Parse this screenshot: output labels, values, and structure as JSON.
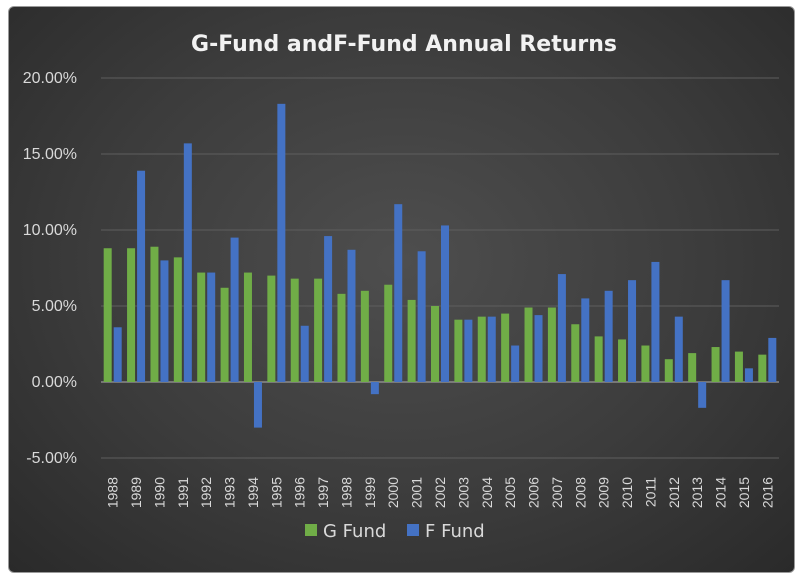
{
  "chart_data": {
    "type": "bar",
    "title": "G-Fund andF-Fund Annual Returns",
    "xlabel": "",
    "ylabel": "",
    "ylim": [
      -5,
      20
    ],
    "yticks": [
      "-5.00%",
      "0.00%",
      "5.00%",
      "10.00%",
      "15.00%",
      "20.00%"
    ],
    "ytick_values": [
      -5,
      0,
      5,
      10,
      15,
      20
    ],
    "grid": true,
    "legend": "bottom",
    "categories": [
      "1988",
      "1989",
      "1990",
      "1991",
      "1992",
      "1993",
      "1994",
      "1995",
      "1996",
      "1997",
      "1998",
      "1999",
      "2000",
      "2001",
      "2002",
      "2003",
      "2004",
      "2005",
      "2006",
      "2007",
      "2008",
      "2009",
      "2010",
      "2011",
      "2012",
      "2013",
      "2014",
      "2015",
      "2016"
    ],
    "series": [
      {
        "name": "G Fund",
        "color": "#70ad47",
        "values": [
          8.8,
          8.8,
          8.9,
          8.2,
          7.2,
          6.2,
          7.2,
          7.0,
          6.8,
          6.8,
          5.8,
          6.0,
          6.4,
          5.4,
          5.0,
          4.1,
          4.3,
          4.5,
          4.9,
          4.9,
          3.8,
          3.0,
          2.8,
          2.4,
          1.5,
          1.9,
          2.3,
          2.0,
          1.8
        ]
      },
      {
        "name": "F Fund",
        "color": "#4472c4",
        "values": [
          3.6,
          13.9,
          8.0,
          15.7,
          7.2,
          9.5,
          -3.0,
          18.3,
          3.7,
          9.6,
          8.7,
          -0.8,
          11.7,
          8.6,
          10.3,
          4.1,
          4.3,
          2.4,
          4.4,
          7.1,
          5.5,
          6.0,
          6.7,
          7.9,
          4.3,
          -1.7,
          6.7,
          0.9,
          2.9
        ]
      }
    ]
  },
  "colors": {
    "background": "#3d3d3d",
    "grid": "#5e5e5e",
    "axis_zero": "#b0b0b0"
  }
}
